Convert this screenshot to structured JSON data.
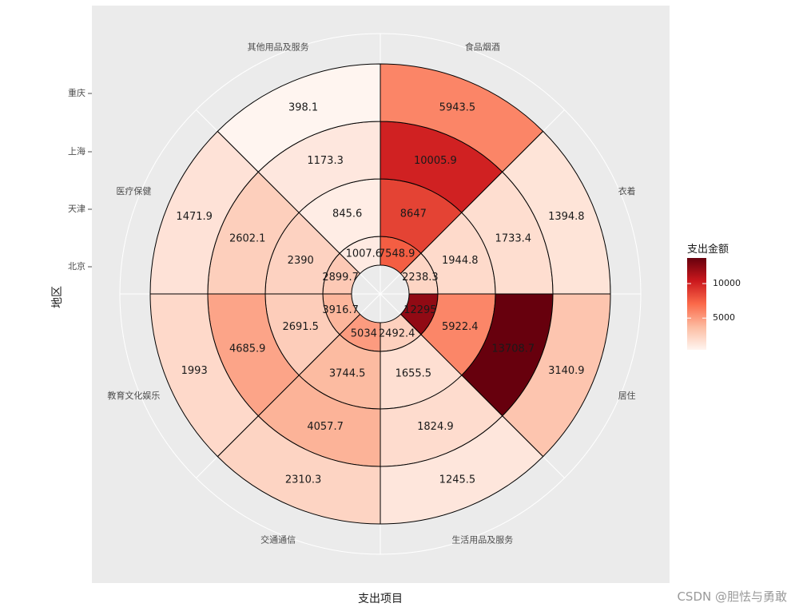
{
  "chart_data": {
    "type": "polar-heatmap",
    "title": "",
    "xlabel": "支出项目",
    "ylabel": "地区",
    "categories": [
      "食品烟酒",
      "衣着",
      "居住",
      "生活用品及服务",
      "交通通信",
      "教育文化娱乐",
      "医疗保健",
      "其他用品及服务"
    ],
    "regions": [
      "北京",
      "天津",
      "上海",
      "重庆"
    ],
    "values": {
      "北京": [
        7548.9,
        2238.3,
        12295,
        2492.4,
        5034,
        3916.7,
        2899.7,
        1007.6
      ],
      "天津": [
        8647,
        1944.8,
        5922.4,
        1655.5,
        3744.5,
        2691.5,
        2390,
        845.6
      ],
      "上海": [
        10005.9,
        1733.4,
        13708.7,
        1824.9,
        4057.7,
        4685.9,
        2602.1,
        1173.3
      ],
      "重庆": [
        5943.5,
        1394.8,
        3140.9,
        1245.5,
        2310.3,
        1993,
        1471.9,
        398.1
      ]
    },
    "labels": {
      "北京": [
        "7548.9",
        "2238.3",
        "12295",
        "2492.4",
        "5034",
        "3916.7",
        "2899.7",
        "1007.6"
      ],
      "天津": [
        "8647",
        "1944.8",
        "5922.4",
        "1655.5",
        "3744.5",
        "2691.5",
        "2390",
        "845.6"
      ],
      "上海": [
        "10005.9",
        "1733.4",
        "13708.7",
        "1824.9",
        "4057.7",
        "4685.9",
        "2602.1",
        "1173.3"
      ],
      "重庆": [
        "5943.5",
        "1394.8",
        "3140.9",
        "1245.5",
        "2310.3",
        "1993",
        "1471.9",
        "398.1"
      ]
    },
    "legend": {
      "title": "支出金额",
      "ticks": [
        5000,
        10000
      ],
      "tick_labels": [
        "5000",
        "10000"
      ],
      "placement": "right"
    },
    "colors": {
      "low": "#FFF5F0",
      "mid1": "#FCBBA1",
      "mid2": "#FB6A4A",
      "mid3": "#CB181D",
      "high": "#67000D",
      "panel": "#EBEBEB",
      "grid": "#FFFFFF"
    },
    "value_range": [
      398.1,
      13708.7
    ]
  },
  "watermark": "CSDN @胆怯与勇敢"
}
